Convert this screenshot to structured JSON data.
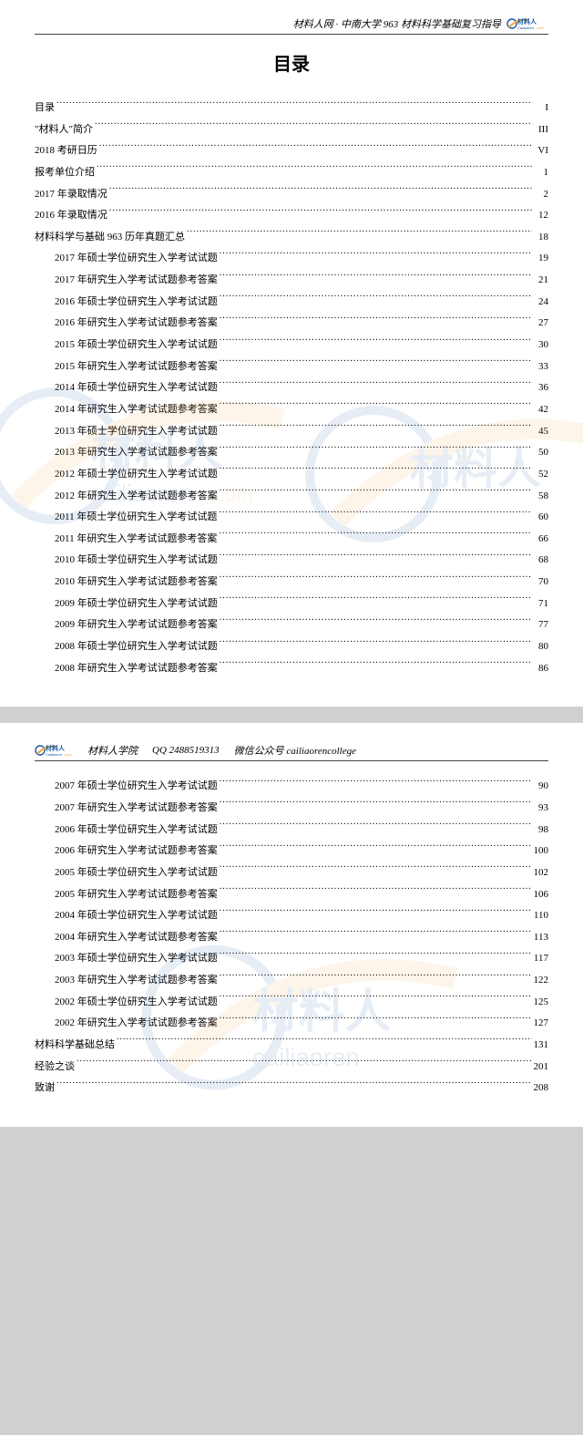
{
  "header1": {
    "text": "材料人网 · 中南大学 963 材料科学基础复习指导"
  },
  "header2": {
    "org": "材料人学院",
    "qq_label": "QQ",
    "qq": "2488519313",
    "wechat_label": "微信公众号",
    "wechat": "cailiaorencollege"
  },
  "logo": {
    "brand_cn": "材料人",
    "brand_py": "Cailiaoren",
    "tld": ".com",
    "colors": {
      "blue": "#1a5aa8",
      "orange": "#f2a23a",
      "text": "#1a5aa8"
    }
  },
  "toc_title": "目录",
  "toc_page1": [
    {
      "indent": 0,
      "label": "目录",
      "page": "I"
    },
    {
      "indent": 0,
      "label": "\"材料人\"简介",
      "page": "III"
    },
    {
      "indent": 0,
      "label": "2018 考研日历",
      "page": "VI"
    },
    {
      "indent": 0,
      "label": "报考单位介绍",
      "page": "1"
    },
    {
      "indent": 0,
      "label": "2017 年录取情况",
      "page": "2"
    },
    {
      "indent": 0,
      "label": "2016 年录取情况",
      "page": "12"
    },
    {
      "indent": 0,
      "label": "材料科学与基础 963 历年真题汇总",
      "page": "18"
    },
    {
      "indent": 1,
      "label": "2017 年硕士学位研究生入学考试试题",
      "page": "19"
    },
    {
      "indent": 1,
      "label": "2017 年研究生入学考试试题参考答案",
      "page": "21"
    },
    {
      "indent": 1,
      "label": "2016 年硕士学位研究生入学考试试题",
      "page": "24"
    },
    {
      "indent": 1,
      "label": "2016 年研究生入学考试试题参考答案",
      "page": "27"
    },
    {
      "indent": 1,
      "label": "2015 年硕士学位研究生入学考试试题",
      "page": "30"
    },
    {
      "indent": 1,
      "label": "2015 年研究生入学考试试题参考答案",
      "page": "33"
    },
    {
      "indent": 1,
      "label": "2014 年硕士学位研究生入学考试试题",
      "page": "36"
    },
    {
      "indent": 1,
      "label": "2014 年研究生入学考试试题参考答案",
      "page": "42"
    },
    {
      "indent": 1,
      "label": "2013 年硕士学位研究生入学考试试题",
      "page": "45"
    },
    {
      "indent": 1,
      "label": "2013 年研究生入学考试试题参考答案",
      "page": "50"
    },
    {
      "indent": 1,
      "label": "2012 年硕士学位研究生入学考试试题",
      "page": "52"
    },
    {
      "indent": 1,
      "label": "2012 年研究生入学考试试题参考答案",
      "page": "58"
    },
    {
      "indent": 1,
      "label": "2011 年硕士学位研究生入学考试试题",
      "page": "60"
    },
    {
      "indent": 1,
      "label": "2011 年研究生入学考试试题参考答案",
      "page": "66"
    },
    {
      "indent": 1,
      "label": "2010 年硕士学位研究生入学考试试题",
      "page": "68"
    },
    {
      "indent": 1,
      "label": "2010 年研究生入学考试试题参考答案",
      "page": "70"
    },
    {
      "indent": 1,
      "label": "2009 年硕士学位研究生入学考试试题",
      "page": "71"
    },
    {
      "indent": 1,
      "label": "2009 年研究生入学考试试题参考答案",
      "page": "77"
    },
    {
      "indent": 1,
      "label": "2008 年硕士学位研究生入学考试试题",
      "page": "80"
    },
    {
      "indent": 1,
      "label": "2008 年研究生入学考试试题参考答案",
      "page": "86"
    }
  ],
  "toc_page2": [
    {
      "indent": 1,
      "label": "2007 年硕士学位研究生入学考试试题",
      "page": "90"
    },
    {
      "indent": 1,
      "label": "2007 年研究生入学考试试题参考答案",
      "page": "93"
    },
    {
      "indent": 1,
      "label": "2006 年硕士学位研究生入学考试试题",
      "page": "98"
    },
    {
      "indent": 1,
      "label": "2006 年研究生入学考试试题参考答案",
      "page": "100"
    },
    {
      "indent": 1,
      "label": "2005 年硕士学位研究生入学考试试题",
      "page": "102"
    },
    {
      "indent": 1,
      "label": "2005 年研究生入学考试试题参考答案",
      "page": "106"
    },
    {
      "indent": 1,
      "label": "2004 年硕士学位研究生入学考试试题",
      "page": "110"
    },
    {
      "indent": 1,
      "label": "2004 年研究生入学考试试题参考答案",
      "page": "113"
    },
    {
      "indent": 1,
      "label": "2003 年硕士学位研究生入学考试试题",
      "page": "117"
    },
    {
      "indent": 1,
      "label": "2003 年研究生入学考试试题参考答案",
      "page": "122"
    },
    {
      "indent": 1,
      "label": "2002 年硕士学位研究生入学考试试题",
      "page": "125"
    },
    {
      "indent": 1,
      "label": "2002 年研究生入学考试试题参考答案",
      "page": "127"
    },
    {
      "indent": 0,
      "label": "材料科学基础总结",
      "page": "131"
    },
    {
      "indent": 0,
      "label": "经验之谈",
      "page": "201"
    },
    {
      "indent": 0,
      "label": "致谢",
      "page": "208"
    }
  ]
}
